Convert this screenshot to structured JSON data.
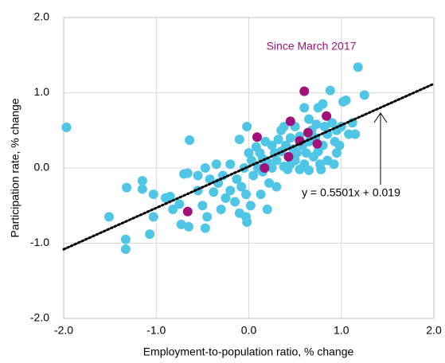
{
  "chart_data": {
    "type": "scatter",
    "x_label": "Employment-to-population ratio, % change",
    "y_label": "Participation rate, % change",
    "xlim": [
      -2,
      2
    ],
    "ylim": [
      -2,
      2
    ],
    "xticks": [
      {
        "value": -2,
        "label": "-2.0"
      },
      {
        "value": -1,
        "label": "-1.0"
      },
      {
        "value": 0,
        "label": "0.0"
      },
      {
        "value": 1,
        "label": "1.0"
      },
      {
        "value": 2,
        "label": "2.0"
      }
    ],
    "yticks": [
      {
        "value": -2,
        "label": "-2.0"
      },
      {
        "value": -1,
        "label": "-1.0"
      },
      {
        "value": 0,
        "label": "0.0"
      },
      {
        "value": 1,
        "label": "1.0"
      },
      {
        "value": 2,
        "label": "2.0"
      }
    ],
    "grid": true,
    "series": [
      {
        "color": "#4fc6e6",
        "x": [
          -1.97,
          -1.51,
          -1.33,
          -1.33,
          -1.32,
          -1.15,
          -1.15,
          -1.07,
          -1.03,
          -1.03,
          -0.85,
          -0.82,
          -0.75,
          -0.73,
          -0.65,
          -0.64,
          -0.7,
          -0.66,
          -0.55,
          -0.5,
          -0.47,
          -0.45,
          -0.47,
          -0.42,
          -0.38,
          -0.33,
          -0.3,
          -0.28,
          -0.25,
          -0.2,
          -0.2,
          -0.15,
          -0.13,
          -0.1,
          -0.1,
          -0.08,
          -0.05,
          -0.03,
          -0.02,
          0.0,
          0.02,
          -0.03,
          -0.02,
          0.03,
          0.05,
          0.08,
          0.1,
          0.12,
          0.13,
          0.15,
          0.15,
          0.18,
          0.2,
          0.22,
          0.25,
          0.25,
          0.28,
          0.3,
          0.32,
          0.3,
          0.35,
          0.35,
          0.38,
          0.4,
          0.42,
          0.45,
          0.48,
          0.5,
          0.5,
          0.52,
          0.55,
          0.55,
          0.58,
          0.6,
          0.6,
          0.62,
          0.65,
          0.65,
          0.68,
          0.7,
          0.72,
          0.73,
          0.75,
          0.77,
          0.78,
          0.8,
          0.82,
          0.85,
          0.85,
          0.88,
          0.9,
          0.93,
          0.75,
          0.8,
          0.95,
          0.95,
          0.98,
          1.0,
          1.02,
          1.05,
          1.08,
          1.12,
          1.15,
          1.18,
          1.25,
          0.65,
          0.45,
          -0.55,
          -0.9,
          0.92,
          0.2,
          -0.35,
          0.38
        ],
        "values": [
          0.54,
          -0.65,
          -0.95,
          -1.08,
          -0.26,
          -0.17,
          -0.28,
          -0.88,
          -0.65,
          -0.35,
          -0.38,
          -0.55,
          -0.48,
          -0.75,
          -0.78,
          0.37,
          -0.08,
          -0.07,
          -0.3,
          -0.5,
          -0.8,
          -0.65,
          0.0,
          -0.15,
          -0.32,
          -0.2,
          -0.55,
          -0.1,
          -0.4,
          0.05,
          -0.3,
          -0.45,
          -0.15,
          0.38,
          -0.6,
          -0.25,
          0.0,
          -0.35,
          0.55,
          0.2,
          -0.5,
          -0.65,
          -0.72,
          0.1,
          -0.1,
          0.28,
          0.0,
          0.2,
          -0.35,
          -0.05,
          0.12,
          0.35,
          0.08,
          -0.2,
          0.3,
          0.0,
          0.2,
          0.1,
          0.38,
          -0.25,
          0.22,
          0.5,
          0.02,
          0.3,
          -0.02,
          0.4,
          0.25,
          0.1,
          0.55,
          0.2,
          0.42,
          -0.02,
          0.3,
          0.8,
          0.05,
          0.2,
          0.35,
          -0.03,
          0.5,
          0.15,
          0.4,
          0.58,
          0.22,
          0.05,
          -0.02,
          0.3,
          0.55,
          0.1,
          0.45,
          1.03,
          0.6,
          0.35,
          0.8,
          0.85,
          0.2,
          0.5,
          0.3,
          0.55,
          0.88,
          0.9,
          0.45,
          0.6,
          0.45,
          1.34,
          0.97,
          0.65,
          0.05,
          -0.1,
          -0.4,
          0.05,
          -0.55,
          0.05,
          0.55
        ]
      },
      {
        "name": "Since March 2017",
        "color": "#a0127a",
        "x": [
          0.09,
          0.17,
          0.45,
          0.6,
          0.64,
          0.55,
          0.43,
          0.84,
          0.74,
          -0.66
        ],
        "values": [
          0.41,
          0.0,
          0.62,
          1.02,
          0.47,
          0.36,
          0.15,
          0.69,
          0.32,
          -0.58
        ]
      }
    ],
    "trendline": {
      "slope": 0.5501,
      "intercept": 0.019,
      "label": "y = 0.5501x + 0.019"
    }
  }
}
